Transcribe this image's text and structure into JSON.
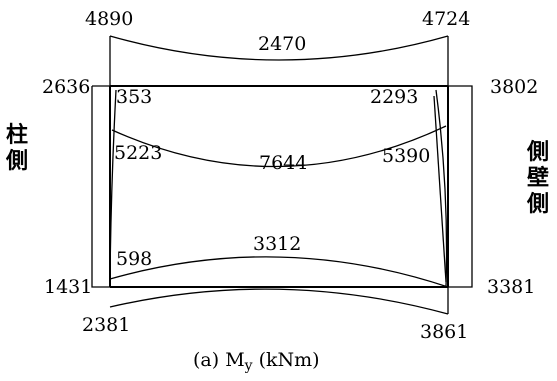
{
  "caption": "(a)  M",
  "caption_sub": "y",
  "caption_unit": " (kNm)",
  "side_left": [
    "柱",
    "側"
  ],
  "side_right": [
    "側",
    "壁",
    "側"
  ],
  "values": {
    "top_left_outer": "4890",
    "top_mid": "2470",
    "top_right_outer": "4724",
    "left_top_outer": "2636",
    "right_top_outer": "3802",
    "top_left_inner": "353",
    "top_right_inner": "2293",
    "mid_left": "5223",
    "mid_center": "7644",
    "mid_right": "5390",
    "bottom_mid": "3312",
    "bottom_left_inner": "598",
    "left_bottom_outer": "1431",
    "right_bottom_outer": "3381",
    "bottom_left_outer": "2381",
    "bottom_right_outer": "3861"
  }
}
